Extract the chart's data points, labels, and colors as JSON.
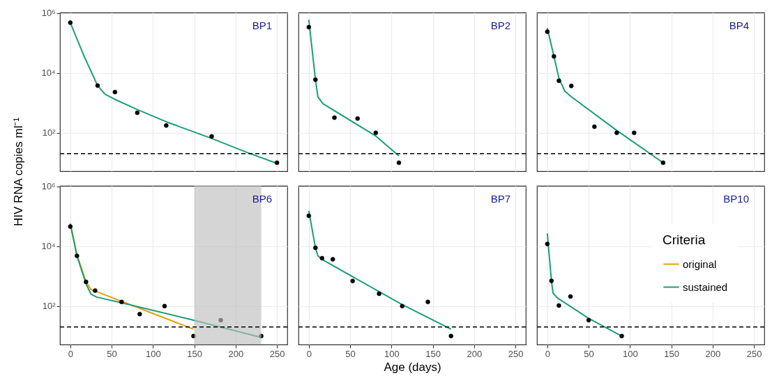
{
  "chart_data": [
    {
      "type": "line",
      "ylabel": "HIV RNA copies ml⁻¹",
      "annotations": [
        "BP1"
      ],
      "xlim": [
        -12.5,
        262.5
      ],
      "xticks": [
        0,
        50,
        100,
        150,
        200,
        250
      ],
      "ylim": [
        5.2,
        1050000
      ],
      "yticks": [
        {
          "value": 100,
          "label": "10²"
        },
        {
          "value": 10000,
          "label": "10⁴"
        },
        {
          "value": 1000000,
          "label": "10⁶"
        }
      ],
      "log": "y",
      "grid": true,
      "tick_labels": "y",
      "ref_lines": [
        {
          "axis": "y",
          "value": 20,
          "color": "#000000",
          "line_style": "dashed"
        }
      ],
      "series": [
        {
          "type": "scatter",
          "color": "#000000",
          "marker": "circle",
          "x": [
            0,
            33,
            54,
            81,
            116,
            171,
            250
          ],
          "values": [
            480000,
            3800,
            2300,
            470,
            175,
            76,
            10
          ]
        },
        {
          "color": "#1b9e77",
          "x": [
            0,
            16,
            33,
            42,
            53,
            81,
            116,
            171,
            214,
            250
          ],
          "values": [
            480000,
            40000,
            3800,
            1950,
            1350,
            600,
            234,
            65,
            22,
            9.5
          ]
        }
      ]
    },
    {
      "type": "line",
      "annotations": [
        "BP2"
      ],
      "xlim": [
        -12.5,
        262.5
      ],
      "xticks": [
        0,
        50,
        100,
        150,
        200,
        250
      ],
      "ylim": [
        5.2,
        1050000
      ],
      "yticks": [
        100,
        10000,
        1000000
      ],
      "log": "y",
      "grid": true,
      "tick_labels": false,
      "ref_lines": [
        {
          "axis": "y",
          "value": 20,
          "color": "#000000",
          "line_style": "dashed"
        }
      ],
      "series": [
        {
          "type": "scatter",
          "color": "#000000",
          "marker": "circle",
          "x": [
            0,
            8,
            31,
            59,
            81,
            109
          ],
          "values": [
            340000,
            6000,
            320,
            300,
            100,
            10
          ]
        },
        {
          "color": "#1b9e77",
          "x": [
            0,
            8,
            11,
            17,
            81,
            109
          ],
          "values": [
            600000,
            6000,
            1600,
            950,
            78,
            17
          ]
        }
      ]
    },
    {
      "type": "line",
      "annotations": [
        "BP4"
      ],
      "xlim": [
        -12.5,
        262.5
      ],
      "xticks": [
        0,
        50,
        100,
        150,
        200,
        250
      ],
      "ylim": [
        5.2,
        1050000
      ],
      "yticks": [
        100,
        10000,
        1000000
      ],
      "log": "y",
      "grid": true,
      "tick_labels": false,
      "ref_lines": [
        {
          "axis": "y",
          "value": 20,
          "color": "#000000",
          "line_style": "dashed"
        }
      ],
      "series": [
        {
          "type": "scatter",
          "color": "#000000",
          "marker": "circle",
          "x": [
            0,
            8,
            14,
            29,
            57,
            84,
            105,
            140
          ],
          "values": [
            240000,
            36000,
            5500,
            3700,
            160,
            100,
            100,
            10
          ]
        },
        {
          "color": "#1b9e77",
          "x": [
            0,
            8,
            14,
            21,
            29,
            84,
            140
          ],
          "values": [
            320000,
            36000,
            6800,
            2500,
            1600,
            120,
            10
          ]
        }
      ]
    },
    {
      "type": "line",
      "annotations": [
        "BP6"
      ],
      "xlim": [
        -12.5,
        262.5
      ],
      "xticks": [
        0,
        50,
        100,
        150,
        200,
        250
      ],
      "ylim": [
        5.2,
        1050000
      ],
      "yticks": [
        {
          "value": 100,
          "label": "10²"
        },
        {
          "value": 10000,
          "label": "10⁴"
        },
        {
          "value": 1000000,
          "label": "10⁶"
        }
      ],
      "log": "y",
      "grid": true,
      "ref_lines": [
        {
          "axis": "y",
          "value": 20,
          "color": "#000000",
          "line_style": "dashed"
        }
      ],
      "bands": [
        {
          "axis": "x",
          "from": 150,
          "to": 231,
          "color": "#bebebe"
        }
      ],
      "series": [
        {
          "color": "#e69f00",
          "x": [
            0,
            8,
            19,
            25,
            30,
            149
          ],
          "values": [
            59000,
            5200,
            650,
            360,
            320,
            17
          ]
        },
        {
          "color": "#1b9e77",
          "x": [
            0,
            8,
            19,
            25,
            32,
            62,
            149,
            231
          ],
          "values": [
            55000,
            4800,
            560,
            250,
            200,
            130,
            34,
            9
          ]
        },
        {
          "type": "scatter",
          "color": "#000000",
          "marker": "circle",
          "x": [
            0,
            8,
            19,
            30,
            62,
            84,
            114,
            149,
            182,
            231
          ],
          "values": [
            46000,
            4800,
            650,
            330,
            138,
            54,
            100,
            10,
            34,
            10
          ]
        }
      ]
    },
    {
      "type": "line",
      "xlabel": "Age (days)",
      "annotations": [
        "BP7"
      ],
      "xlim": [
        -12.5,
        262.5
      ],
      "xticks": [
        0,
        50,
        100,
        150,
        200,
        250
      ],
      "ylim": [
        5.2,
        1050000
      ],
      "yticks": [
        100,
        10000,
        1000000
      ],
      "log": "y",
      "grid": true,
      "tick_labels": "x",
      "ref_lines": [
        {
          "axis": "y",
          "value": 20,
          "color": "#000000",
          "line_style": "dashed"
        }
      ],
      "series": [
        {
          "type": "scatter",
          "color": "#000000",
          "marker": "circle",
          "x": [
            0,
            8,
            16,
            29,
            53,
            85,
            113,
            144,
            172
          ],
          "values": [
            105000,
            8900,
            4000,
            3700,
            690,
            260,
            100,
            138,
            10
          ]
        },
        {
          "color": "#1b9e77",
          "x": [
            0,
            8,
            11,
            17,
            113,
            172
          ],
          "values": [
            155000,
            8900,
            4800,
            3500,
            112,
            17
          ]
        }
      ]
    },
    {
      "type": "line",
      "annotations": [
        "BP10"
      ],
      "legend_title": "Criteria",
      "legend": "right",
      "xlim": [
        -12.5,
        262.5
      ],
      "xticks": [
        0,
        50,
        100,
        150,
        200,
        250
      ],
      "ylim": [
        5.2,
        1050000
      ],
      "yticks": [
        100,
        10000,
        1000000
      ],
      "log": "y",
      "grid": true,
      "tick_labels": "x",
      "ref_lines": [
        {
          "axis": "y",
          "value": 20,
          "color": "#000000",
          "line_style": "dashed"
        }
      ],
      "series": [
        {
          "type": "scatter",
          "color": "#000000",
          "marker": "circle",
          "x": [
            0,
            5,
            14,
            28,
            50,
            90
          ],
          "values": [
            12000,
            700,
            105,
            210,
            34,
            10
          ]
        },
        {
          "name": "original",
          "color": "#e69f00"
        },
        {
          "name": "sustained",
          "color": "#1b9e77",
          "x": [
            0,
            5,
            7,
            12,
            50,
            90
          ],
          "values": [
            27000,
            700,
            270,
            190,
            39,
            10
          ]
        }
      ]
    }
  ]
}
